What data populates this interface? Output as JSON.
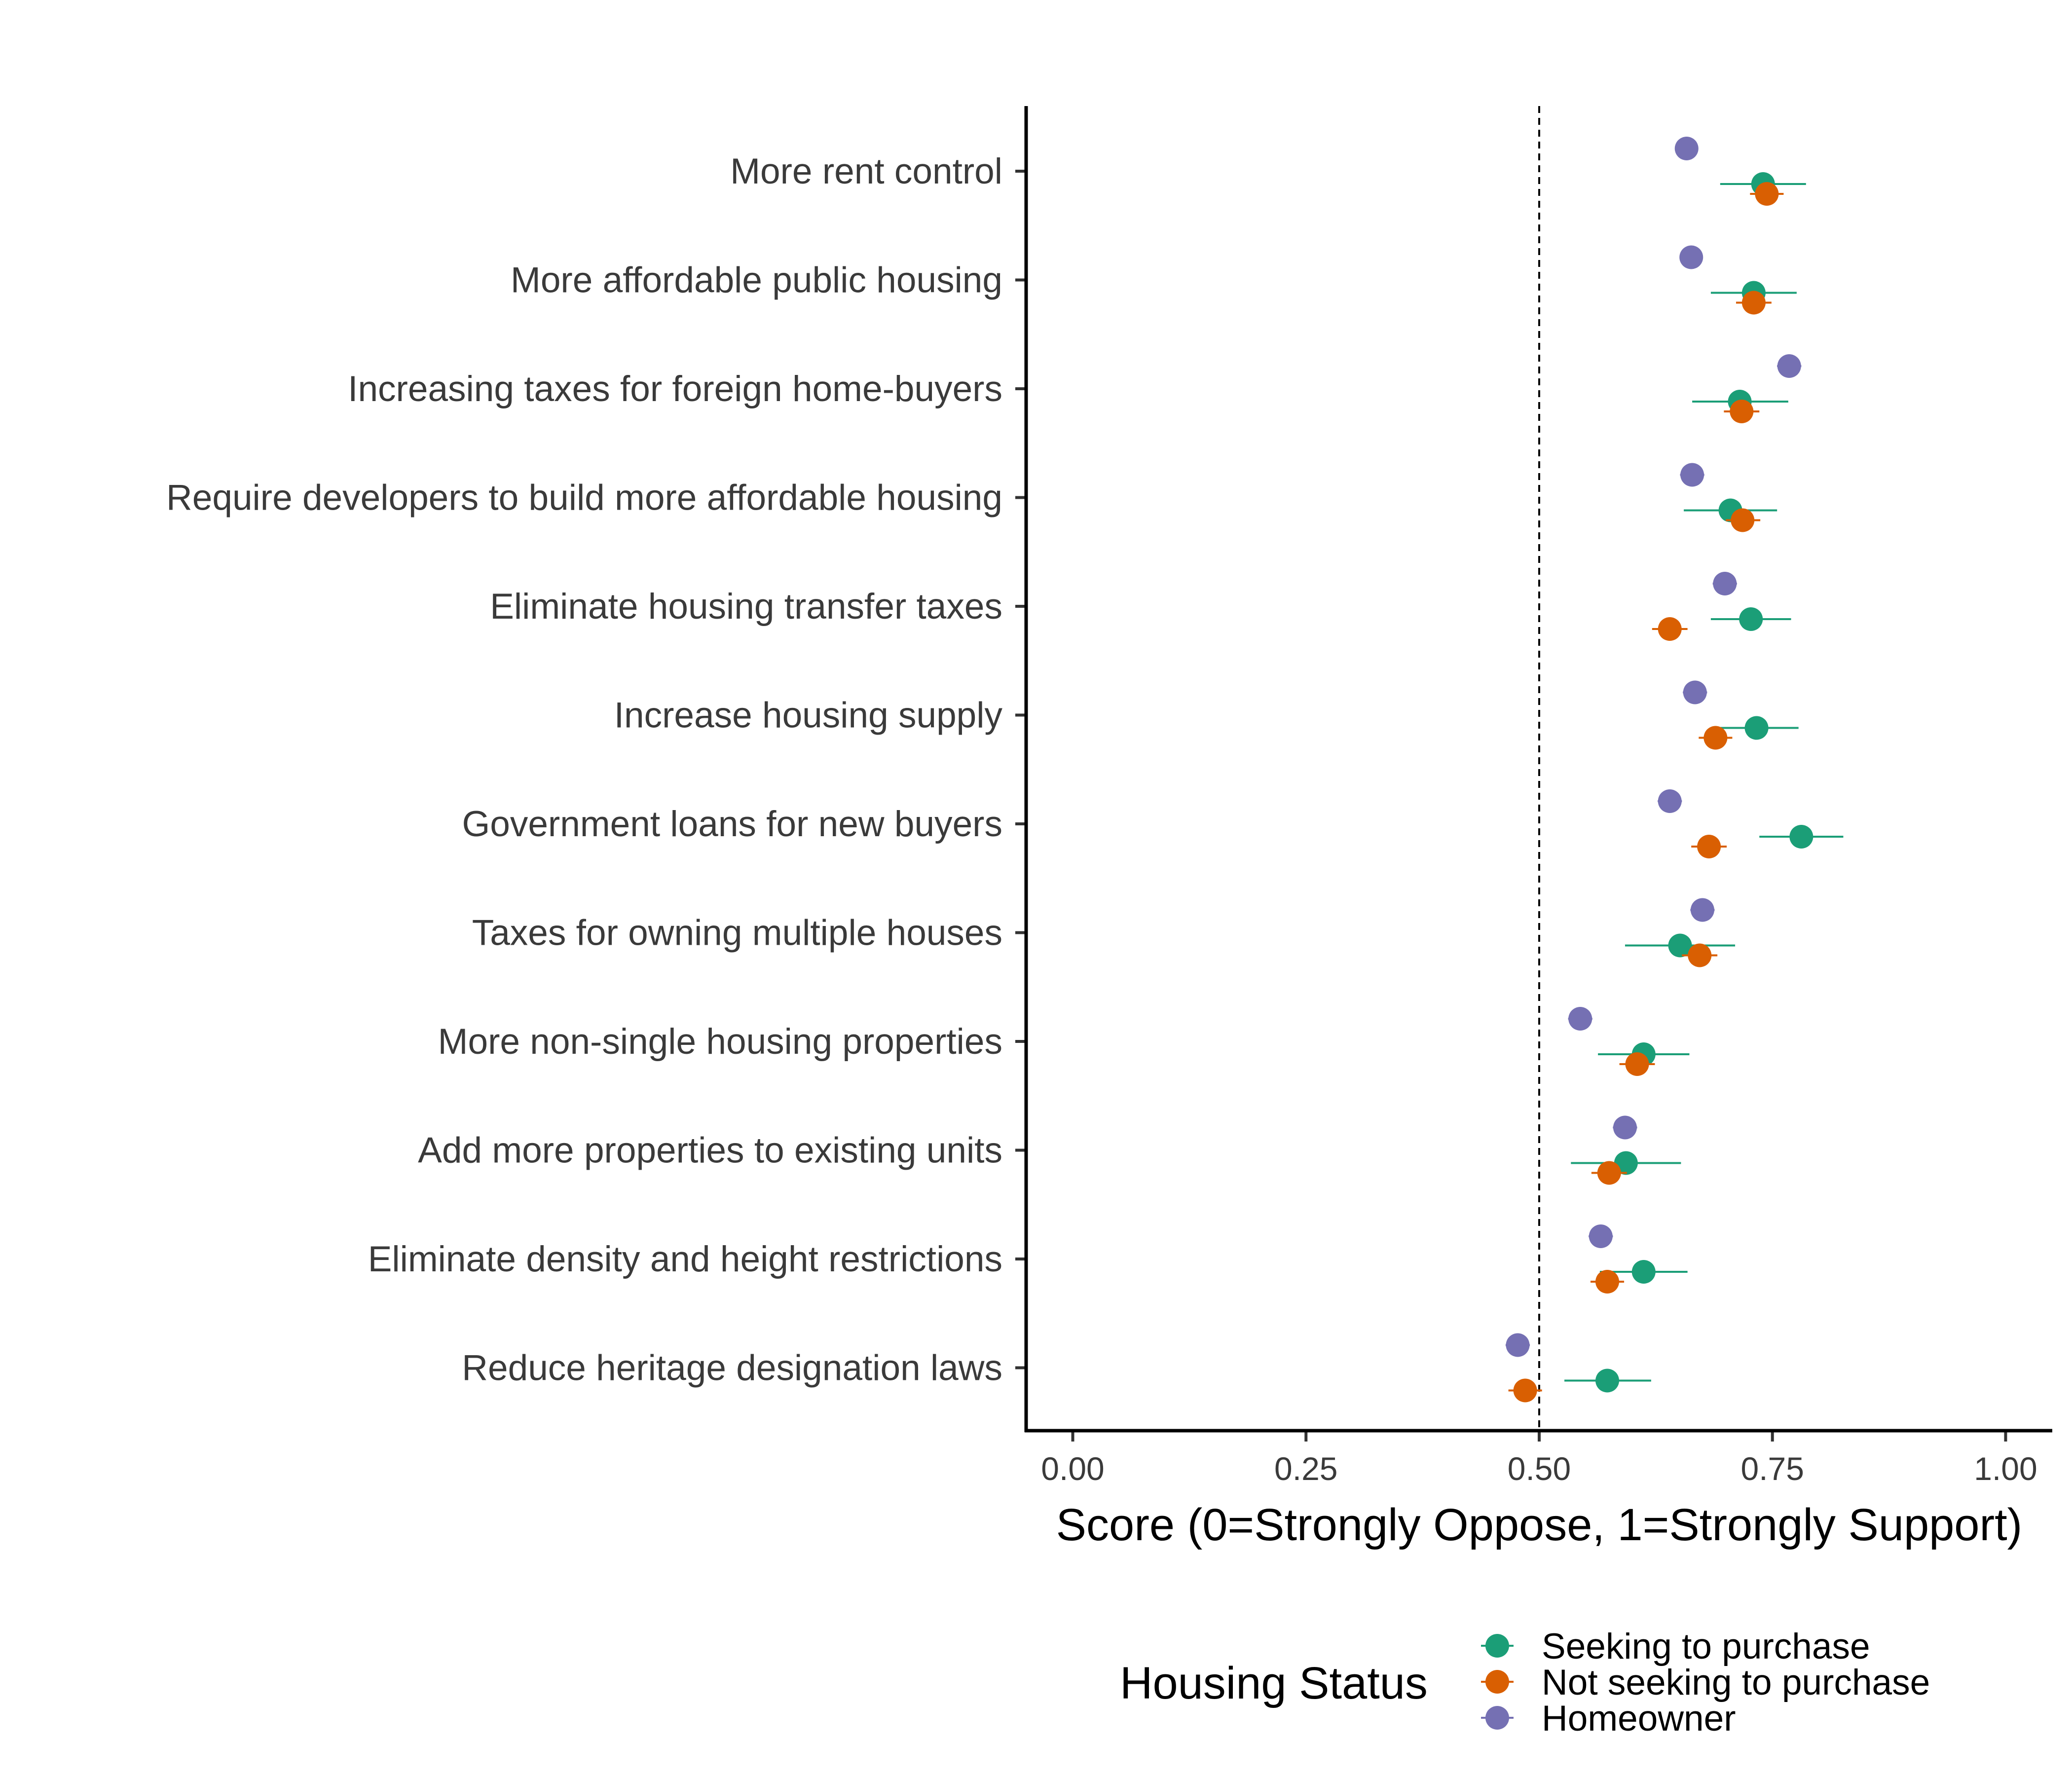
{
  "chart_data": {
    "type": "scatter",
    "subtype": "dot plot with horizontal confidence intervals",
    "title": "",
    "xlabel": "Score (0=Strongly Oppose, 1=Strongly Support)",
    "ylabel": "",
    "xlim": [
      -0.05,
      1.05
    ],
    "xticks": [
      0,
      0.25,
      0.5,
      0.75,
      1
    ],
    "xtick_labels": [
      "0.00",
      "0.25",
      "0.50",
      "0.75",
      "1.00"
    ],
    "reference_line": {
      "x": 0.5,
      "style": "dashed"
    },
    "grid": false,
    "legend": {
      "title": "Housing Status",
      "position": "bottom"
    },
    "categories": [
      "More rent control",
      "More affordable public housing",
      "Increasing taxes for foreign home-buyers",
      "Require developers to build more affordable housing",
      "Eliminate housing transfer taxes",
      "Increase housing supply",
      "Government loans for new buyers",
      "Taxes for owning multiple houses",
      "More non-single housing properties",
      "Add more properties to existing units",
      "Eliminate density and height restrictions",
      "Reduce heritage designation laws"
    ],
    "series": [
      {
        "name": "Seeking to purchase",
        "color": "#1b9e77",
        "values": [
          0.74,
          0.73,
          0.715,
          0.705,
          0.727,
          0.733,
          0.781,
          0.651,
          0.612,
          0.593,
          0.612,
          0.573
        ],
        "ci_low": [
          0.694,
          0.684,
          0.664,
          0.655,
          0.684,
          0.687,
          0.736,
          0.592,
          0.563,
          0.534,
          0.565,
          0.527
        ],
        "ci_high": [
          0.786,
          0.776,
          0.767,
          0.755,
          0.77,
          0.778,
          0.826,
          0.71,
          0.661,
          0.652,
          0.659,
          0.62
        ]
      },
      {
        "name": "Not seeking to purchase",
        "color": "#d95f02",
        "values": [
          0.744,
          0.73,
          0.717,
          0.718,
          0.64,
          0.689,
          0.682,
          0.672,
          0.605,
          0.575,
          0.573,
          0.485
        ],
        "ci_low": [
          0.726,
          0.711,
          0.698,
          0.7,
          0.621,
          0.671,
          0.663,
          0.653,
          0.586,
          0.556,
          0.555,
          0.467
        ],
        "ci_high": [
          0.762,
          0.749,
          0.736,
          0.737,
          0.659,
          0.707,
          0.701,
          0.691,
          0.624,
          0.594,
          0.591,
          0.503
        ]
      },
      {
        "name": "Homeowner",
        "color": "#7570b3",
        "values": [
          0.658,
          0.663,
          0.768,
          0.664,
          0.699,
          0.667,
          0.64,
          0.675,
          0.544,
          0.592,
          0.566,
          0.477
        ],
        "ci_low": [
          0.646,
          0.651,
          0.755,
          0.651,
          0.686,
          0.654,
          0.627,
          0.662,
          0.531,
          0.579,
          0.553,
          0.464
        ],
        "ci_high": [
          0.67,
          0.675,
          0.781,
          0.677,
          0.712,
          0.68,
          0.653,
          0.688,
          0.557,
          0.605,
          0.579,
          0.49
        ]
      }
    ]
  }
}
